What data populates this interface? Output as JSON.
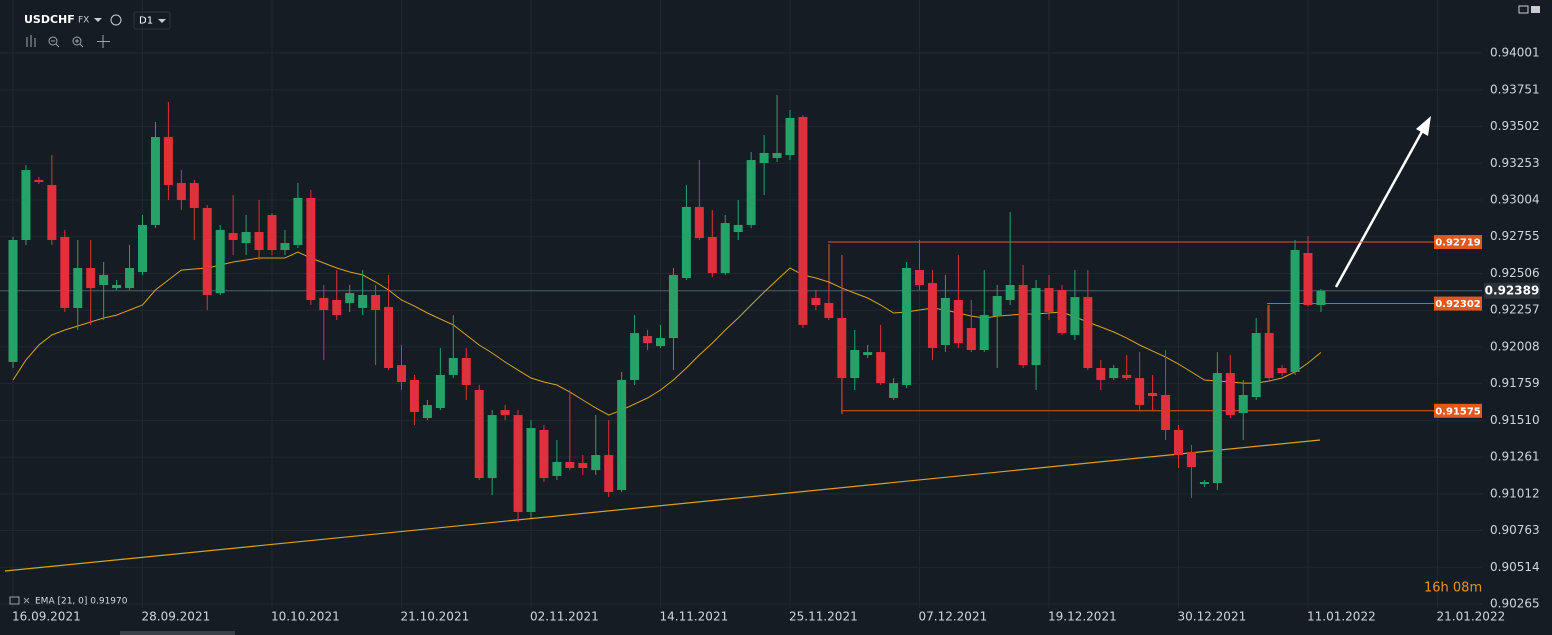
{
  "ui": {
    "symbol": "USDCHF",
    "market": "FX",
    "timeframe": "D1",
    "countdown": "16h 08m"
  },
  "chart_data": {
    "type": "candlestick",
    "categories": [
      "16.09.2021",
      null,
      null,
      null,
      null,
      null,
      null,
      null,
      null,
      null,
      "28.09.2021",
      null,
      null,
      null,
      null,
      null,
      null,
      null,
      null,
      null,
      "10.10.2021",
      null,
      null,
      null,
      null,
      null,
      null,
      null,
      null,
      null,
      "21.10.2021",
      null,
      null,
      null,
      null,
      null,
      null,
      null,
      null,
      null,
      "02.11.2021",
      null,
      null,
      null,
      null,
      null,
      null,
      null,
      null,
      null,
      "14.11.2021",
      null,
      null,
      null,
      null,
      null,
      null,
      null,
      null,
      null,
      "25.11.2021",
      null,
      null,
      null,
      null,
      null,
      null,
      null,
      null,
      null,
      "07.12.2021",
      null,
      null,
      null,
      null,
      null,
      null,
      null,
      null,
      null,
      "19.12.2021",
      null,
      null,
      null,
      null,
      null,
      null,
      null,
      null,
      null,
      "30.12.2021",
      null,
      null,
      null,
      null,
      null,
      null,
      null,
      null,
      null,
      "11.01.2022",
      null,
      null,
      null,
      null,
      null,
      null,
      null,
      null,
      null,
      "21.01.2022"
    ],
    "open": [
      0.91906,
      0.92733,
      0.9314,
      0.93106,
      0.92753,
      0.92272,
      0.92543,
      0.92428,
      0.92407,
      0.92407,
      0.92516,
      0.92835,
      0.93431,
      0.93119,
      0.93119,
      0.9295,
      0.92373,
      0.9278,
      0.92712,
      0.92787,
      0.92902,
      0.92665,
      0.92699,
      0.93018,
      0.9234,
      0.92326,
      0.92306,
      0.92272,
      0.9236,
      0.92279,
      0.91885,
      0.91784,
      0.91526,
      0.91594,
      0.91818,
      0.91933,
      0.91716,
      0.91119,
      0.9158,
      0.91546,
      0.90889,
      0.91445,
      0.91133,
      0.91228,
      0.91221,
      0.91173,
      0.91275,
      0.91038,
      0.91784,
      0.92082,
      0.92014,
      0.92068,
      0.92475,
      0.92957,
      0.92753,
      0.92509,
      0.92787,
      0.92835,
      0.93255,
      0.93289,
      0.93309,
      0.93567,
      0.9234,
      0.92306,
      0.92204,
      0.91797,
      0.91953,
      0.91973,
      0.91662,
      0.9175,
      0.92529,
      0.92441,
      0.92021,
      0.92326,
      0.92136,
      0.91987,
      0.92217,
      0.92326,
      0.92428,
      0.91885,
      0.92407,
      0.92394,
      0.92089,
      0.92346,
      0.91865,
      0.91797,
      0.91818,
      0.91797,
      0.91696,
      0.91682,
      0.91445,
      0.91295,
      0.91078,
      0.91085,
      0.91831,
      0.9156,
      0.91668,
      0.92102,
      0.91865,
      0.91838,
      0.92645,
      0.92292,
      null,
      null,
      null,
      null,
      null,
      null,
      null,
      null,
      null
    ],
    "high": [
      0.92753,
      0.93241,
      0.9316,
      0.93309,
      0.92801,
      0.92733,
      0.92733,
      0.92584,
      0.92462,
      0.92699,
      0.92902,
      0.93533,
      0.93668,
      0.93207,
      0.9314,
      0.9297,
      0.92835,
      0.93038,
      0.92902,
      0.93004,
      0.92916,
      0.92801,
      0.93119,
      0.93072,
      0.92428,
      0.92529,
      0.92428,
      0.92529,
      0.92428,
      0.92496,
      0.92021,
      0.91818,
      0.91648,
      0.92001,
      0.92224,
      0.92001,
      0.9175,
      0.9158,
      0.91614,
      0.9158,
      0.91512,
      0.91479,
      0.91377,
      0.91716,
      0.91275,
      0.91546,
      0.91512,
      0.91838,
      0.92224,
      0.92123,
      0.92157,
      0.92543,
      0.93106,
      0.93275,
      0.92936,
      0.92902,
      0.93004,
      0.93329,
      0.93445,
      0.93716,
      0.93614,
      0.9358,
      0.92394,
      0.92428,
      0.92631,
      0.92123,
      0.92021,
      0.92157,
      0.91797,
      0.92584,
      0.92733,
      0.92529,
      0.92496,
      0.92631,
      0.92326,
      0.92529,
      0.92428,
      0.92923,
      0.92563,
      0.92462,
      0.92496,
      0.92428,
      0.92529,
      0.92529,
      0.91919,
      0.91885,
      0.91953,
      0.91973,
      0.91818,
      0.91987,
      0.91479,
      0.91343,
      0.91106,
      0.91973,
      0.91953,
      0.91784,
      0.92204,
      0.92292,
      0.91885,
      0.92733,
      0.9276,
      0.924,
      null,
      null,
      null,
      null,
      null,
      null,
      null,
      null,
      null
    ],
    "low": [
      0.91865,
      0.92699,
      0.93112,
      0.92699,
      0.92245,
      0.92123,
      0.92157,
      0.9219,
      0.92394,
      0.92394,
      0.92496,
      0.92814,
      0.93004,
      0.92936,
      0.92733,
      0.92258,
      0.9236,
      0.92631,
      0.92631,
      0.92597,
      0.92631,
      0.92631,
      0.92679,
      0.92292,
      0.91919,
      0.9219,
      0.92245,
      0.92224,
      0.91885,
      0.91851,
      0.91716,
      0.91479,
      0.91512,
      0.9158,
      0.91797,
      0.91648,
      0.91106,
      0.91004,
      0.91512,
      0.90821,
      0.90848,
      0.91092,
      0.91106,
      0.91173,
      0.9114,
      0.9114,
      0.9099,
      0.91024,
      0.9175,
      0.91987,
      0.92001,
      0.91851,
      0.92462,
      0.92733,
      0.92482,
      0.92496,
      0.92733,
      0.92814,
      0.93038,
      0.93262,
      0.93275,
      0.92136,
      0.92258,
      0.9219,
      0.91567,
      0.91716,
      0.91933,
      0.9175,
      0.91648,
      0.91729,
      0.92394,
      0.91919,
      0.91973,
      0.92001,
      0.91973,
      0.91973,
      0.91865,
      0.92292,
      0.91865,
      0.91716,
      0.9219,
      0.92089,
      0.92055,
      0.91851,
      0.91716,
      0.91784,
      0.91784,
      0.9158,
      0.9158,
      0.91377,
      0.91187,
      0.90984,
      0.91058,
      0.91038,
      0.91526,
      0.91377,
      0.91648,
      0.91784,
      0.91811,
      0.91818,
      0.92285,
      0.92245,
      null,
      null,
      null,
      null,
      null,
      null,
      null,
      null,
      null
    ],
    "close": [
      0.92733,
      0.93207,
      0.93126,
      0.92733,
      0.92272,
      0.92543,
      0.92407,
      0.92496,
      0.92428,
      0.92543,
      0.92835,
      0.93431,
      0.93106,
      0.93004,
      0.9295,
      0.9236,
      0.92801,
      0.92733,
      0.92787,
      0.92665,
      0.92665,
      0.92712,
      0.93018,
      0.92326,
      0.92258,
      0.92224,
      0.92373,
      0.9236,
      0.92258,
      0.91865,
      0.9177,
      0.91567,
      0.91614,
      0.91818,
      0.91933,
      0.9175,
      0.91119,
      0.91546,
      0.91546,
      0.90889,
      0.91458,
      0.91119,
      0.91228,
      0.91187,
      0.91187,
      0.91275,
      0.91024,
      0.91784,
      0.92102,
      0.92034,
      0.92068,
      0.92496,
      0.92957,
      0.92746,
      0.92509,
      0.92848,
      0.92835,
      0.93275,
      0.93323,
      0.93323,
      0.9356,
      0.92157,
      0.92292,
      0.92204,
      0.91797,
      0.91987,
      0.91973,
      0.91763,
      0.91763,
      0.92543,
      0.92428,
      0.92001,
      0.9234,
      0.92034,
      0.91987,
      0.92224,
      0.92353,
      0.92428,
      0.91885,
      0.92407,
      0.92245,
      0.92102,
      0.92346,
      0.91865,
      0.91784,
      0.91865,
      0.91797,
      0.91614,
      0.91675,
      0.91445,
      0.91275,
      0.91194,
      0.91092,
      0.91831,
      0.91546,
      0.91682,
      0.92102,
      0.91797,
      0.91831,
      0.92665,
      0.92292,
      0.92389,
      null,
      null,
      null,
      null,
      null,
      null,
      null,
      null,
      null
    ],
    "colors": {
      "up": "#26a269",
      "down": "#e0303b"
    },
    "indicator": {
      "name": "EMA [21, 0] 0.91970",
      "color": "#d9a21c",
      "values": [
        0.91784,
        0.91919,
        0.92021,
        0.92089,
        0.92123,
        0.9215,
        0.92177,
        0.92204,
        0.92224,
        0.92258,
        0.92292,
        0.92394,
        0.92462,
        0.92529,
        0.92536,
        0.92543,
        0.92563,
        0.92584,
        0.92597,
        0.92611,
        0.92611,
        0.92611,
        0.92651,
        0.92611,
        0.92577,
        0.92543,
        0.92516,
        0.92496,
        0.92448,
        0.92394,
        0.92326,
        0.92285,
        0.92238,
        0.92197,
        0.92157,
        0.92089,
        0.92021,
        0.91967,
        0.91906,
        0.91851,
        0.91797,
        0.9177,
        0.9175,
        0.91702,
        0.91648,
        0.91594,
        0.91546,
        0.9158,
        0.91621,
        0.91662,
        0.91716,
        0.91784,
        0.91865,
        0.91953,
        0.92034,
        0.92123,
        0.92204,
        0.92292,
        0.9238,
        0.92462,
        0.92543,
        0.92496,
        0.92475,
        0.92448,
        0.92407,
        0.92373,
        0.9234,
        0.92292,
        0.92238,
        0.92245,
        0.92258,
        0.92272,
        0.92258,
        0.92238,
        0.92217,
        0.92204,
        0.92217,
        0.92224,
        0.92231,
        0.92231,
        0.92238,
        0.92245,
        0.92211,
        0.92177,
        0.92143,
        0.92109,
        0.92068,
        0.92021,
        0.9198,
        0.9194,
        0.91892,
        0.91838,
        0.91784,
        0.91777,
        0.9177,
        0.91763,
        0.91763,
        0.91777,
        0.91797,
        0.91838,
        0.91899,
        0.9197,
        null,
        null,
        null,
        null,
        null,
        null,
        null,
        null,
        null
      ]
    },
    "levels": [
      {
        "value": 0.92719,
        "color": "#e2581b"
      },
      {
        "value": 0.92302,
        "color": "#e2581b"
      },
      {
        "value": 0.91575,
        "color": "#e2581b"
      }
    ],
    "last_price": 0.92389,
    "ylim": [
      0.90238,
      0.9436
    ],
    "yticks": [
      0.94001,
      0.93751,
      0.93502,
      0.93253,
      0.93004,
      0.92755,
      0.92506,
      0.92257,
      0.92008,
      0.91759,
      {
        "value": 0.9151,
        "label": "0.91510"
      },
      0.91261,
      0.91012,
      0.90763,
      0.90514,
      0.90265
    ],
    "grid": true
  }
}
